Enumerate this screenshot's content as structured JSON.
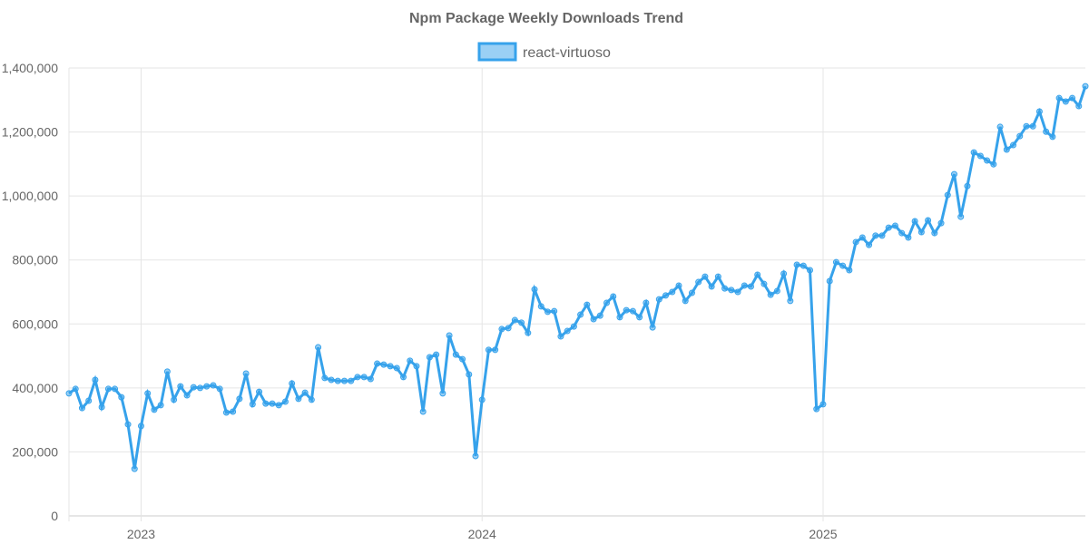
{
  "chart_data": {
    "type": "line",
    "title": "Npm Package Weekly Downloads Trend",
    "xlabel": "",
    "ylabel": "",
    "legend": {
      "placement": "top-center",
      "entries": [
        "react-virtuoso"
      ]
    },
    "grid": true,
    "ylim": [
      0,
      1400000
    ],
    "y_ticks": [
      "0",
      "200,000",
      "400,000",
      "600,000",
      "800,000",
      "1,000,000",
      "1,200,000",
      "1,400,000"
    ],
    "y_tick_values": [
      0,
      200000,
      400000,
      600000,
      800000,
      1000000,
      1200000,
      1400000
    ],
    "x_ticks": [
      {
        "label": "2023",
        "week_index": 11
      },
      {
        "label": "2024",
        "week_index": 63
      },
      {
        "label": "2025",
        "week_index": 115
      }
    ],
    "x_start": "2022-10-16",
    "x_interval_days": 7,
    "series": [
      {
        "name": "react-virtuoso",
        "color": "#36a2eb",
        "fill": "rgba(54,162,235,0.5)",
        "values": [
          383000,
          397000,
          337000,
          360000,
          425000,
          340000,
          397000,
          397000,
          371000,
          286000,
          147000,
          281000,
          383000,
          332000,
          346000,
          451000,
          363000,
          405000,
          377000,
          402000,
          400000,
          405000,
          408000,
          397000,
          323000,
          326000,
          366000,
          445000,
          349000,
          388000,
          351000,
          351000,
          346000,
          357000,
          414000,
          366000,
          385000,
          363000,
          527000,
          431000,
          425000,
          422000,
          422000,
          422000,
          434000,
          434000,
          428000,
          476000,
          473000,
          468000,
          462000,
          434000,
          485000,
          468000,
          326000,
          496000,
          504000,
          383000,
          564000,
          504000,
          490000,
          442000,
          187000,
          363000,
          519000,
          519000,
          584000,
          587000,
          612000,
          604000,
          572000,
          708000,
          655000,
          638000,
          640000,
          561000,
          578000,
          592000,
          629000,
          660000,
          615000,
          626000,
          666000,
          686000,
          621000,
          643000,
          640000,
          621000,
          666000,
          589000,
          677000,
          689000,
          700000,
          720000,
          672000,
          697000,
          731000,
          748000,
          717000,
          748000,
          711000,
          706000,
          700000,
          720000,
          717000,
          754000,
          725000,
          691000,
          703000,
          757000,
          672000,
          785000,
          782000,
          768000,
          334000,
          349000,
          734000,
          793000,
          782000,
          768000,
          856000,
          870000,
          847000,
          876000,
          876000,
          901000,
          907000,
          884000,
          870000,
          921000,
          887000,
          924000,
          884000,
          915000,
          1003000,
          1068000,
          935000,
          1031000,
          1136000,
          1125000,
          1111000,
          1099000,
          1216000,
          1145000,
          1159000,
          1187000,
          1218000,
          1218000,
          1264000,
          1201000,
          1185000,
          1306000,
          1295000,
          1306000,
          1281000,
          1343000
        ]
      }
    ]
  }
}
